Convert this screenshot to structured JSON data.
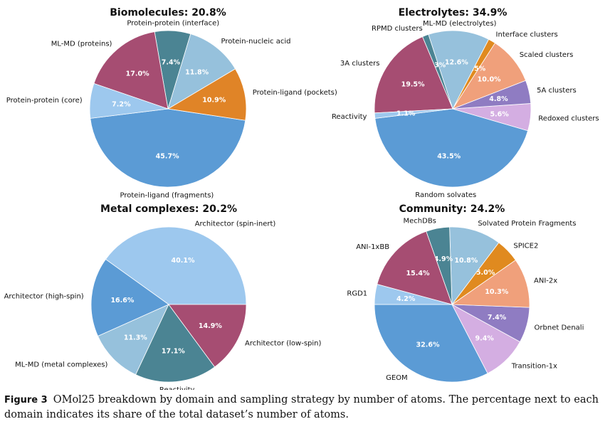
{
  "colors": {
    "blue": "#5b9bd5",
    "orange": "#e08427",
    "lightblue": "#96c1dc",
    "teal": "#4b8493",
    "maroon": "#a64d72",
    "paleblue": "#9dc8ee",
    "lavender": "#d4aee2",
    "purple": "#8f7cc2",
    "salmon": "#f0a07b",
    "gold": "#e08a1f"
  },
  "chart_data": [
    {
      "type": "pie",
      "title": "Biomolecules: 20.8%",
      "slices": [
        {
          "label": "Protein-ligand (fragments)",
          "value": 45.7,
          "pct_label": "45.7%",
          "color": "blue"
        },
        {
          "label": "Protein-ligand (pockets)",
          "value": 10.9,
          "pct_label": "10.9%",
          "color": "orange"
        },
        {
          "label": "Protein-nucleic acid",
          "value": 11.8,
          "pct_label": "11.8%",
          "color": "lightblue"
        },
        {
          "label": "Protein-protein (interface)",
          "value": 7.4,
          "pct_label": "7.4%",
          "color": "teal"
        },
        {
          "label": "ML-MD (proteins)",
          "value": 17.0,
          "pct_label": "17.0%",
          "color": "maroon"
        },
        {
          "label": "Protein-protein (core)",
          "value": 7.2,
          "pct_label": "7.2%",
          "color": "paleblue"
        }
      ]
    },
    {
      "type": "pie",
      "title": "Electrolytes: 34.9%",
      "slices": [
        {
          "label": "Random solvates",
          "value": 43.5,
          "pct_label": "43.5%",
          "color": "blue"
        },
        {
          "label": "Redoxed clusters",
          "value": 5.6,
          "pct_label": "5.6%",
          "color": "lavender"
        },
        {
          "label": "5A clusters",
          "value": 4.8,
          "pct_label": "4.8%",
          "color": "purple"
        },
        {
          "label": "Scaled clusters",
          "value": 10.0,
          "pct_label": "10.0%",
          "color": "salmon"
        },
        {
          "label": "Interface clusters",
          "value": 1.5,
          "pct_label": "1.5%",
          "color": "gold"
        },
        {
          "label": "ML-MD (electrolytes)",
          "value": 12.6,
          "pct_label": "12.6%",
          "color": "lightblue"
        },
        {
          "label": "RPMD clusters",
          "value": 1.3,
          "pct_label": "1.3%",
          "color": "teal"
        },
        {
          "label": "3A clusters",
          "value": 19.5,
          "pct_label": "19.5%",
          "color": "maroon"
        },
        {
          "label": "Reactivity",
          "value": 1.1,
          "pct_label": "1.1%",
          "color": "paleblue"
        }
      ]
    },
    {
      "type": "pie",
      "title": "Metal complexes: 20.2%",
      "slices": [
        {
          "label": "Architector (spin-inert)",
          "value": 40.1,
          "pct_label": "40.1%",
          "color": "paleblue"
        },
        {
          "label": "Architector (high-spin)",
          "value": 16.6,
          "pct_label": "16.6%",
          "color": "blue"
        },
        {
          "label": "ML-MD (metal complexes)",
          "value": 11.3,
          "pct_label": "11.3%",
          "color": "lightblue"
        },
        {
          "label": "Reactivity",
          "value": 17.1,
          "pct_label": "17.1%",
          "color": "teal"
        },
        {
          "label": "Architector (low-spin)",
          "value": 14.9,
          "pct_label": "14.9%",
          "color": "maroon"
        }
      ]
    },
    {
      "type": "pie",
      "title": "Community: 24.2%",
      "slices": [
        {
          "label": "GEOM",
          "value": 32.6,
          "pct_label": "32.6%",
          "color": "blue"
        },
        {
          "label": "Transition-1x",
          "value": 9.4,
          "pct_label": "9.4%",
          "color": "lavender"
        },
        {
          "label": "Orbnet Denali",
          "value": 7.4,
          "pct_label": "7.4%",
          "color": "purple"
        },
        {
          "label": "ANI-2x",
          "value": 10.3,
          "pct_label": "10.3%",
          "color": "salmon"
        },
        {
          "label": "SPICE2",
          "value": 5.0,
          "pct_label": "5.0%",
          "color": "gold"
        },
        {
          "label": "Solvated Protein Fragments",
          "value": 10.8,
          "pct_label": "10.8%",
          "color": "lightblue"
        },
        {
          "label": "MechDBs",
          "value": 4.9,
          "pct_label": "4.9%",
          "color": "teal"
        },
        {
          "label": "ANI-1xBB",
          "value": 15.4,
          "pct_label": "15.4%",
          "color": "maroon"
        },
        {
          "label": "RGD1",
          "value": 4.2,
          "pct_label": "4.2%",
          "color": "paleblue"
        }
      ]
    }
  ],
  "caption": {
    "label": "Figure 3",
    "text": "OMol25 breakdown by domain and sampling strategy by number of atoms. The percentage next to each domain indicates its share of the total dataset’s number of atoms."
  }
}
